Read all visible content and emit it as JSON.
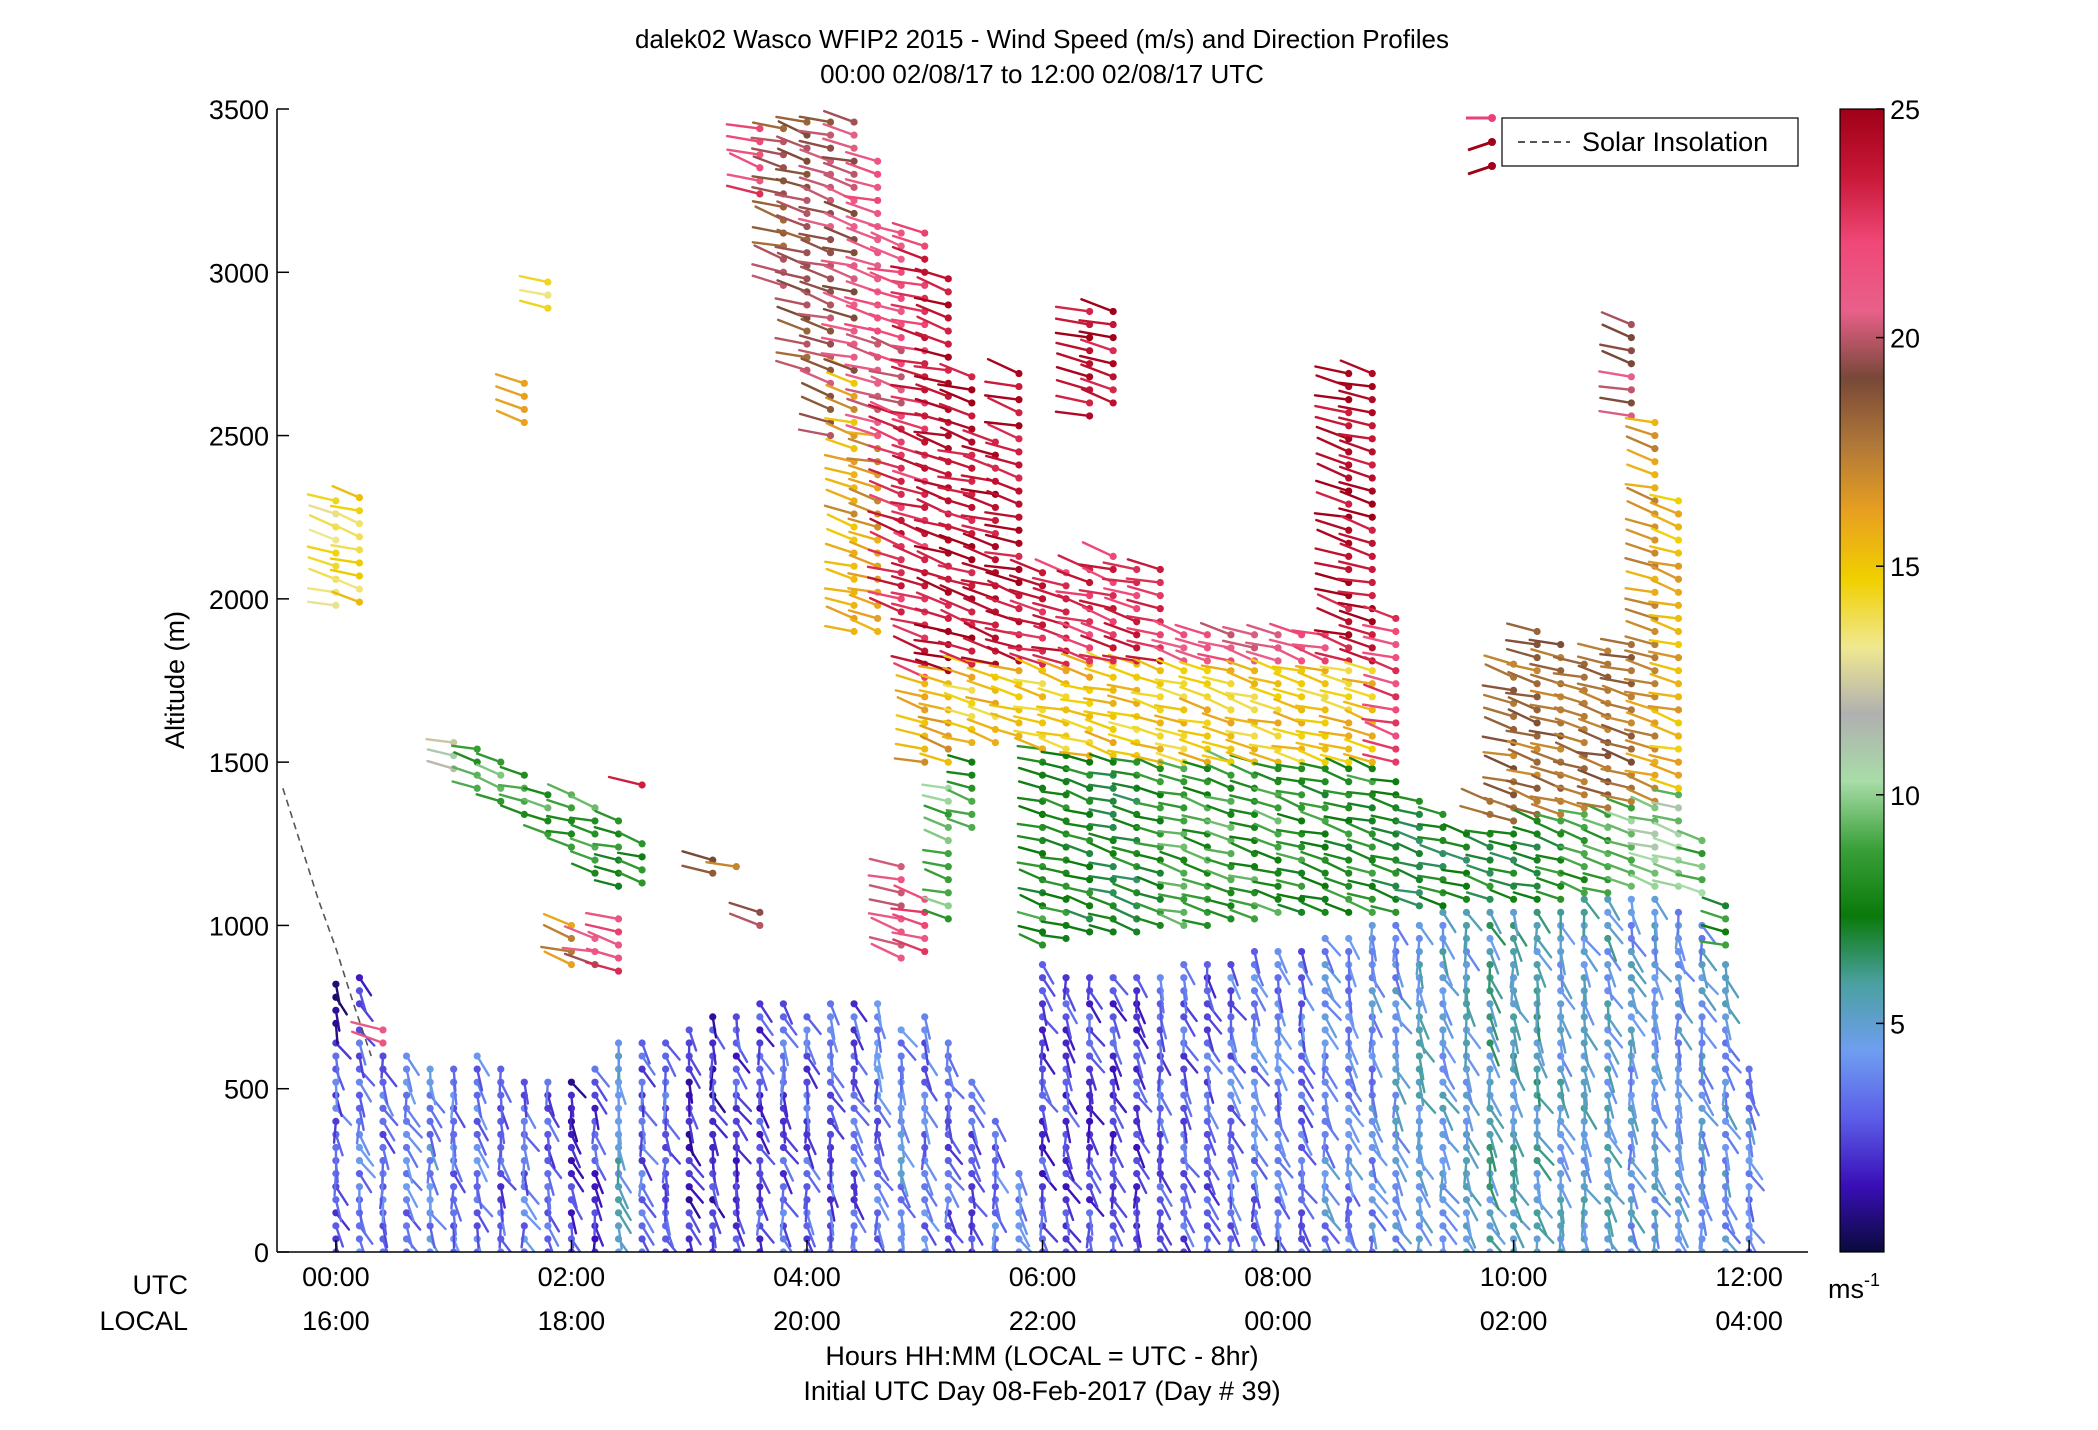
{
  "chart_data": {
    "type": "scatter",
    "title_line1": "dalek02 Wasco WFIP2 2015 - Wind Speed (m/s) and Direction Profiles",
    "title_line2": "00:00 02/08/17 to 12:00 02/08/17  UTC",
    "ylabel": "Altitude (m)",
    "xlabel": "Hours HH:MM  (LOCAL = UTC - 8hr)",
    "xlabel2": "Initial UTC Day 08-Feb-2017 (Day # 39)",
    "row_label_utc": "UTC",
    "row_label_local": "LOCAL",
    "xlim": [
      -0.5,
      12.5
    ],
    "ylim": [
      0,
      3500
    ],
    "y_ticks": [
      0,
      500,
      1000,
      1500,
      2000,
      2500,
      3000,
      3500
    ],
    "x_ticks_utc": [
      "00:00",
      "02:00",
      "04:00",
      "06:00",
      "08:00",
      "10:00",
      "12:00"
    ],
    "x_ticks_local": [
      "16:00",
      "18:00",
      "20:00",
      "22:00",
      "00:00",
      "02:00",
      "04:00"
    ],
    "x_tick_hours": [
      0,
      2,
      4,
      6,
      8,
      10,
      12
    ],
    "legend": {
      "label": "Solar Insolation",
      "placement": "top-right"
    },
    "colorbar": {
      "min": 0,
      "max": 25,
      "ticks": [
        5,
        10,
        15,
        20,
        25
      ],
      "unit_label": "ms",
      "unit_exponent": "-1",
      "stops": [
        "#0a0a3c",
        "#3a0fb8",
        "#5c5ee8",
        "#6f9ef0",
        "#4aa0a0",
        "#0a7a0a",
        "#3aa03a",
        "#a8dca8",
        "#b0b0b0",
        "#f0e890",
        "#f0d000",
        "#e8a020",
        "#b07838",
        "#784838",
        "#e8608a",
        "#f04878",
        "#c81838",
        "#a00018"
      ]
    },
    "solar_insolation_line": {
      "x": [
        -0.45,
        -0.3,
        -0.15,
        0.0,
        0.15,
        0.3
      ],
      "y": [
        1420,
        1250,
        1080,
        930,
        760,
        600
      ]
    },
    "profiles_note": "Wind barbs: each profile is a column of points (time hour, altitude m) colored by wind speed (m/s)",
    "profiles": [
      {
        "t": 0.0,
        "segments": [
          [
            0,
            660,
            3.0
          ],
          [
            700,
            820,
            1.0
          ],
          [
            1980,
            2330,
            14.0
          ]
        ]
      },
      {
        "t": 0.2,
        "segments": [
          [
            0,
            680,
            3.5
          ],
          [
            760,
            860,
            2.5
          ],
          [
            1990,
            2330,
            14.5
          ]
        ]
      },
      {
        "t": 0.4,
        "segments": [
          [
            0,
            620,
            3.5
          ],
          [
            640,
            700,
            22.0
          ]
        ]
      },
      {
        "t": 0.6,
        "segments": [
          [
            0,
            600,
            3.5
          ]
        ]
      },
      {
        "t": 0.8,
        "segments": [
          [
            0,
            560,
            4.0
          ]
        ]
      },
      {
        "t": 1.0,
        "segments": [
          [
            0,
            590,
            3.5
          ],
          [
            1480,
            1570,
            11.5
          ]
        ]
      },
      {
        "t": 1.2,
        "segments": [
          [
            0,
            600,
            3.5
          ],
          [
            1420,
            1560,
            9.0
          ]
        ]
      },
      {
        "t": 1.4,
        "segments": [
          [
            0,
            560,
            3.0
          ],
          [
            1380,
            1500,
            9.5
          ]
        ]
      },
      {
        "t": 1.6,
        "segments": [
          [
            0,
            540,
            3.5
          ],
          [
            1340,
            1460,
            9.0
          ],
          [
            2540,
            2690,
            17.0
          ]
        ]
      },
      {
        "t": 1.8,
        "segments": [
          [
            0,
            520,
            3.0
          ],
          [
            1280,
            1430,
            9.0
          ],
          [
            2890,
            2980,
            14.5
          ]
        ]
      },
      {
        "t": 2.0,
        "segments": [
          [
            0,
            520,
            2.0
          ],
          [
            1240,
            1410,
            8.5
          ],
          [
            880,
            1000,
            17.0
          ]
        ]
      },
      {
        "t": 2.2,
        "segments": [
          [
            0,
            560,
            2.5
          ],
          [
            1160,
            1380,
            8.5
          ],
          [
            880,
            960,
            20.0
          ]
        ]
      },
      {
        "t": 2.4,
        "segments": [
          [
            0,
            640,
            5.0
          ],
          [
            1120,
            1320,
            8.0
          ],
          [
            860,
            1020,
            22.0
          ]
        ]
      },
      {
        "t": 2.6,
        "segments": [
          [
            0,
            650,
            3.0
          ],
          [
            1130,
            1250,
            8.0
          ],
          [
            1430,
            1460,
            24.0
          ]
        ]
      },
      {
        "t": 2.8,
        "segments": [
          [
            0,
            660,
            3.0
          ]
        ]
      },
      {
        "t": 3.0,
        "segments": [
          [
            0,
            700,
            2.0
          ]
        ]
      },
      {
        "t": 3.2,
        "segments": [
          [
            0,
            720,
            2.0
          ],
          [
            1160,
            1210,
            19.0
          ]
        ]
      },
      {
        "t": 3.4,
        "segments": [
          [
            0,
            740,
            2.5
          ],
          [
            1180,
            1210,
            18.0
          ]
        ]
      },
      {
        "t": 3.6,
        "segments": [
          [
            0,
            760,
            2.5
          ],
          [
            1000,
            1050,
            20.0
          ],
          [
            3240,
            3470,
            22.0
          ]
        ]
      },
      {
        "t": 3.8,
        "segments": [
          [
            0,
            760,
            3.0
          ],
          [
            2960,
            3470,
            19.0
          ]
        ]
      },
      {
        "t": 4.0,
        "segments": [
          [
            0,
            750,
            3.0
          ],
          [
            2700,
            3470,
            19.0
          ]
        ]
      },
      {
        "t": 4.2,
        "segments": [
          [
            0,
            770,
            3.0
          ],
          [
            2500,
            3470,
            19.5
          ]
        ]
      },
      {
        "t": 4.4,
        "segments": [
          [
            0,
            780,
            3.0
          ],
          [
            1900,
            2700,
            16.0
          ],
          [
            2700,
            3470,
            20.0
          ]
        ]
      },
      {
        "t": 4.6,
        "segments": [
          [
            0,
            790,
            3.5
          ],
          [
            1900,
            2500,
            16.5
          ],
          [
            2500,
            3340,
            21.0
          ]
        ]
      },
      {
        "t": 4.8,
        "segments": [
          [
            0,
            700,
            4.0
          ],
          [
            900,
            1200,
            21.0
          ],
          [
            1960,
            2560,
            23.0
          ],
          [
            2560,
            3150,
            21.0
          ]
        ]
      },
      {
        "t": 5.0,
        "segments": [
          [
            0,
            720,
            3.5
          ],
          [
            920,
            1080,
            22.0
          ],
          [
            1500,
            1760,
            16.0
          ],
          [
            1760,
            3120,
            23.0
          ]
        ]
      },
      {
        "t": 5.2,
        "segments": [
          [
            0,
            650,
            3.0
          ],
          [
            1020,
            1450,
            9.5
          ],
          [
            1500,
            1780,
            16.0
          ],
          [
            1780,
            2980,
            24.0
          ]
        ]
      },
      {
        "t": 5.4,
        "segments": [
          [
            0,
            520,
            3.0
          ],
          [
            1300,
            1500,
            8.5
          ],
          [
            1560,
            1800,
            15.0
          ],
          [
            1800,
            2700,
            24.0
          ]
        ]
      },
      {
        "t": 5.6,
        "segments": [
          [
            0,
            420,
            3.5
          ],
          [
            1560,
            1800,
            15.0
          ],
          [
            1800,
            2500,
            24.0
          ]
        ]
      },
      {
        "t": 5.8,
        "segments": [
          [
            0,
            260,
            3.5
          ],
          [
            1580,
            1810,
            15.0
          ],
          [
            1810,
            2700,
            24.0
          ]
        ]
      },
      {
        "t": 6.0,
        "segments": [
          [
            0,
            880,
            2.5
          ],
          [
            940,
            1540,
            8.0
          ],
          [
            1540,
            1800,
            15.0
          ],
          [
            1800,
            2100,
            23.0
          ]
        ]
      },
      {
        "t": 6.2,
        "segments": [
          [
            0,
            860,
            2.5
          ],
          [
            960,
            1540,
            8.0
          ],
          [
            1540,
            1800,
            15.0
          ],
          [
            1800,
            2100,
            23.0
          ]
        ]
      },
      {
        "t": 6.4,
        "segments": [
          [
            0,
            860,
            2.5
          ],
          [
            980,
            1520,
            7.5
          ],
          [
            1520,
            1810,
            15.0
          ],
          [
            1810,
            2100,
            23.0
          ],
          [
            2560,
            2900,
            24.0
          ]
        ]
      },
      {
        "t": 6.6,
        "segments": [
          [
            0,
            860,
            2.5
          ],
          [
            980,
            1520,
            7.5
          ],
          [
            1520,
            1810,
            15.0
          ],
          [
            1810,
            2140,
            23.0
          ],
          [
            2600,
            2900,
            24.0
          ]
        ]
      },
      {
        "t": 6.8,
        "segments": [
          [
            0,
            860,
            2.5
          ],
          [
            980,
            1520,
            7.5
          ],
          [
            1520,
            1810,
            15.0
          ],
          [
            1810,
            2100,
            23.0
          ]
        ]
      },
      {
        "t": 7.0,
        "segments": [
          [
            0,
            860,
            3.0
          ],
          [
            1000,
            1500,
            8.0
          ],
          [
            1500,
            1810,
            15.0
          ],
          [
            1810,
            2100,
            23.0
          ]
        ]
      },
      {
        "t": 7.2,
        "segments": [
          [
            0,
            880,
            3.0
          ],
          [
            1000,
            1500,
            8.5
          ],
          [
            1500,
            1810,
            15.0
          ],
          [
            1810,
            1920,
            21.0
          ]
        ]
      },
      {
        "t": 7.4,
        "segments": [
          [
            0,
            900,
            3.0
          ],
          [
            1000,
            1500,
            8.5
          ],
          [
            1500,
            1810,
            15.0
          ],
          [
            1810,
            1920,
            21.0
          ]
        ]
      },
      {
        "t": 7.6,
        "segments": [
          [
            0,
            900,
            3.5
          ],
          [
            1020,
            1500,
            8.5
          ],
          [
            1500,
            1810,
            15.0
          ],
          [
            1810,
            1920,
            21.0
          ]
        ]
      },
      {
        "t": 7.8,
        "segments": [
          [
            0,
            920,
            3.5
          ],
          [
            1020,
            1500,
            8.5
          ],
          [
            1500,
            1810,
            15.0
          ],
          [
            1810,
            1920,
            21.0
          ]
        ]
      },
      {
        "t": 8.0,
        "segments": [
          [
            0,
            940,
            3.5
          ],
          [
            1040,
            1500,
            8.5
          ],
          [
            1500,
            1810,
            15.0
          ],
          [
            1810,
            1920,
            21.0
          ]
        ]
      },
      {
        "t": 8.2,
        "segments": [
          [
            0,
            940,
            3.5
          ],
          [
            1040,
            1500,
            8.0
          ],
          [
            1500,
            1810,
            15.0
          ],
          [
            1810,
            1920,
            22.0
          ]
        ]
      },
      {
        "t": 8.4,
        "segments": [
          [
            0,
            960,
            4.0
          ],
          [
            1040,
            1500,
            8.0
          ],
          [
            1500,
            1810,
            15.0
          ],
          [
            1810,
            1920,
            22.0
          ]
        ]
      },
      {
        "t": 8.6,
        "segments": [
          [
            0,
            980,
            4.0
          ],
          [
            1040,
            1500,
            8.0
          ],
          [
            1500,
            1810,
            15.0
          ],
          [
            1810,
            2700,
            24.0
          ]
        ]
      },
      {
        "t": 8.8,
        "segments": [
          [
            0,
            1000,
            4.0
          ],
          [
            1040,
            1500,
            8.0
          ],
          [
            1500,
            1810,
            15.0
          ],
          [
            1810,
            2700,
            24.0
          ]
        ]
      },
      {
        "t": 9.0,
        "segments": [
          [
            0,
            1000,
            4.5
          ],
          [
            1040,
            1440,
            7.5
          ],
          [
            1500,
            1960,
            22.0
          ]
        ]
      },
      {
        "t": 9.2,
        "segments": [
          [
            0,
            1020,
            5.0
          ],
          [
            1060,
            1400,
            7.5
          ]
        ]
      },
      {
        "t": 9.4,
        "segments": [
          [
            0,
            1040,
            5.0
          ],
          [
            1060,
            1360,
            7.5
          ]
        ]
      },
      {
        "t": 9.6,
        "segments": [
          [
            0,
            1040,
            5.0
          ],
          [
            1080,
            1300,
            7.5
          ]
        ]
      },
      {
        "t": 9.8,
        "segments": [
          [
            0,
            1060,
            5.5
          ],
          [
            1080,
            1300,
            7.5
          ],
          [
            1340,
            1400,
            17.0
          ]
        ]
      },
      {
        "t": 10.0,
        "segments": [
          [
            0,
            1060,
            5.5
          ],
          [
            1080,
            1300,
            7.5
          ],
          [
            1320,
            1820,
            18.0
          ]
        ]
      },
      {
        "t": 10.2,
        "segments": [
          [
            0,
            1060,
            5.5
          ],
          [
            1080,
            1320,
            7.5
          ],
          [
            1340,
            1900,
            18.0
          ]
        ]
      },
      {
        "t": 10.4,
        "segments": [
          [
            0,
            1060,
            5.0
          ],
          [
            1080,
            1320,
            8.0
          ],
          [
            1340,
            1880,
            18.0
          ]
        ]
      },
      {
        "t": 10.6,
        "segments": [
          [
            0,
            1080,
            5.0
          ],
          [
            1100,
            1340,
            8.5
          ],
          [
            1360,
            1820,
            18.0
          ]
        ]
      },
      {
        "t": 10.8,
        "segments": [
          [
            0,
            1080,
            5.0
          ],
          [
            1100,
            1340,
            9.0
          ],
          [
            1360,
            1840,
            18.0
          ]
        ]
      },
      {
        "t": 11.0,
        "segments": [
          [
            0,
            1100,
            4.5
          ],
          [
            1120,
            1380,
            9.5
          ],
          [
            1380,
            1860,
            18.0
          ],
          [
            2560,
            2840,
            20.0
          ]
        ]
      },
      {
        "t": 11.2,
        "segments": [
          [
            0,
            1100,
            4.5
          ],
          [
            1120,
            1380,
            10.0
          ],
          [
            1380,
            2540,
            16.5
          ]
        ]
      },
      {
        "t": 11.4,
        "segments": [
          [
            0,
            1060,
            4.5
          ],
          [
            1120,
            1420,
            10.0
          ],
          [
            1420,
            2330,
            15.5
          ]
        ]
      },
      {
        "t": 11.6,
        "segments": [
          [
            0,
            1000,
            4.5
          ],
          [
            1100,
            1280,
            9.5
          ]
        ]
      },
      {
        "t": 11.8,
        "segments": [
          [
            0,
            900,
            4.5
          ],
          [
            940,
            1060,
            8.0
          ]
        ]
      },
      {
        "t": 12.0,
        "segments": [
          [
            0,
            560,
            4.0
          ]
        ]
      }
    ]
  }
}
